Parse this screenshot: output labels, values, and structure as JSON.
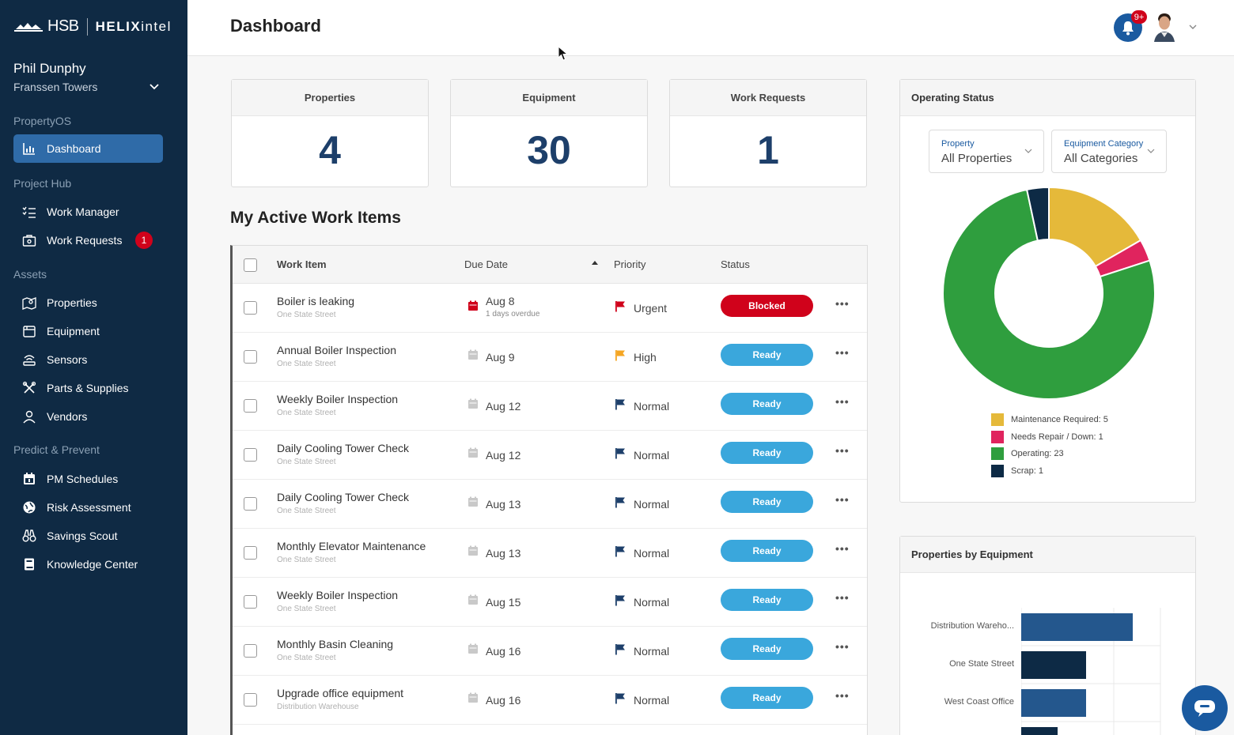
{
  "brand": {
    "hsb": "HSB",
    "helix": "HELIX",
    "intel": "intel"
  },
  "user": {
    "name": "Phil Dunphy",
    "org": "Franssen Towers"
  },
  "sections": {
    "property_os": "PropertyOS",
    "project_hub": "Project Hub",
    "assets": "Assets",
    "predict": "Predict & Prevent"
  },
  "nav": {
    "dashboard": "Dashboard",
    "work_manager": "Work Manager",
    "work_requests": "Work Requests",
    "work_requests_badge": "1",
    "properties": "Properties",
    "equipment": "Equipment",
    "sensors": "Sensors",
    "parts": "Parts & Supplies",
    "vendors": "Vendors",
    "pm": "PM Schedules",
    "risk": "Risk Assessment",
    "savings": "Savings Scout",
    "knowledge": "Knowledge Center"
  },
  "header": {
    "title": "Dashboard",
    "notif_badge": "9+"
  },
  "stats": [
    {
      "label": "Properties",
      "value": "4"
    },
    {
      "label": "Equipment",
      "value": "30"
    },
    {
      "label": "Work Requests",
      "value": "1"
    }
  ],
  "work": {
    "title": "My Active Work Items",
    "columns": {
      "work_item": "Work Item",
      "due_date": "Due Date",
      "priority": "Priority",
      "status": "Status"
    },
    "rows": [
      {
        "title": "Boiler is leaking",
        "location": "One State Street",
        "due": "Aug 8",
        "due_note": "1 days overdue",
        "priority": "Urgent",
        "status": "Blocked"
      },
      {
        "title": "Annual Boiler Inspection",
        "location": "One State Street",
        "due": "Aug 9",
        "due_note": "",
        "priority": "High",
        "status": "Ready"
      },
      {
        "title": "Weekly Boiler Inspection",
        "location": "One State Street",
        "due": "Aug 12",
        "due_note": "",
        "priority": "Normal",
        "status": "Ready"
      },
      {
        "title": "Daily Cooling Tower Check",
        "location": "One State Street",
        "due": "Aug 12",
        "due_note": "",
        "priority": "Normal",
        "status": "Ready"
      },
      {
        "title": "Daily Cooling Tower Check",
        "location": "One State Street",
        "due": "Aug 13",
        "due_note": "",
        "priority": "Normal",
        "status": "Ready"
      },
      {
        "title": "Monthly Elevator Maintenance",
        "location": "One State Street",
        "due": "Aug 13",
        "due_note": "",
        "priority": "Normal",
        "status": "Ready"
      },
      {
        "title": "Weekly Boiler Inspection",
        "location": "One State Street",
        "due": "Aug 15",
        "due_note": "",
        "priority": "Normal",
        "status": "Ready"
      },
      {
        "title": "Monthly Basin Cleaning",
        "location": "One State Street",
        "due": "Aug 16",
        "due_note": "",
        "priority": "Normal",
        "status": "Ready"
      },
      {
        "title": "Upgrade office equipment",
        "location": "Distribution Warehouse",
        "due": "Aug 16",
        "due_note": "",
        "priority": "Normal",
        "status": "Ready"
      }
    ]
  },
  "operating": {
    "title": "Operating Status",
    "filters": {
      "property_label": "Property",
      "property_value": "All Properties",
      "category_label": "Equipment Category",
      "category_value": "All Categories"
    },
    "legend": [
      {
        "label": "Maintenance Required: 5",
        "value": 5,
        "color": "#e5b93a"
      },
      {
        "label": "Needs Repair / Down: 1",
        "value": 1,
        "color": "#e0245e"
      },
      {
        "label": "Operating: 23",
        "value": 23,
        "color": "#2f9e3e"
      },
      {
        "label": "Scrap: 1",
        "value": 1,
        "color": "#0d2a45"
      }
    ]
  },
  "by_equipment": {
    "title": "Properties by Equipment",
    "bars": [
      {
        "label": "Distribution Wareho...",
        "color": "#24578d"
      },
      {
        "label": "One State Street",
        "color": "#0d2a45"
      },
      {
        "label": "West Coast Office",
        "color": "#24578d"
      }
    ]
  }
}
